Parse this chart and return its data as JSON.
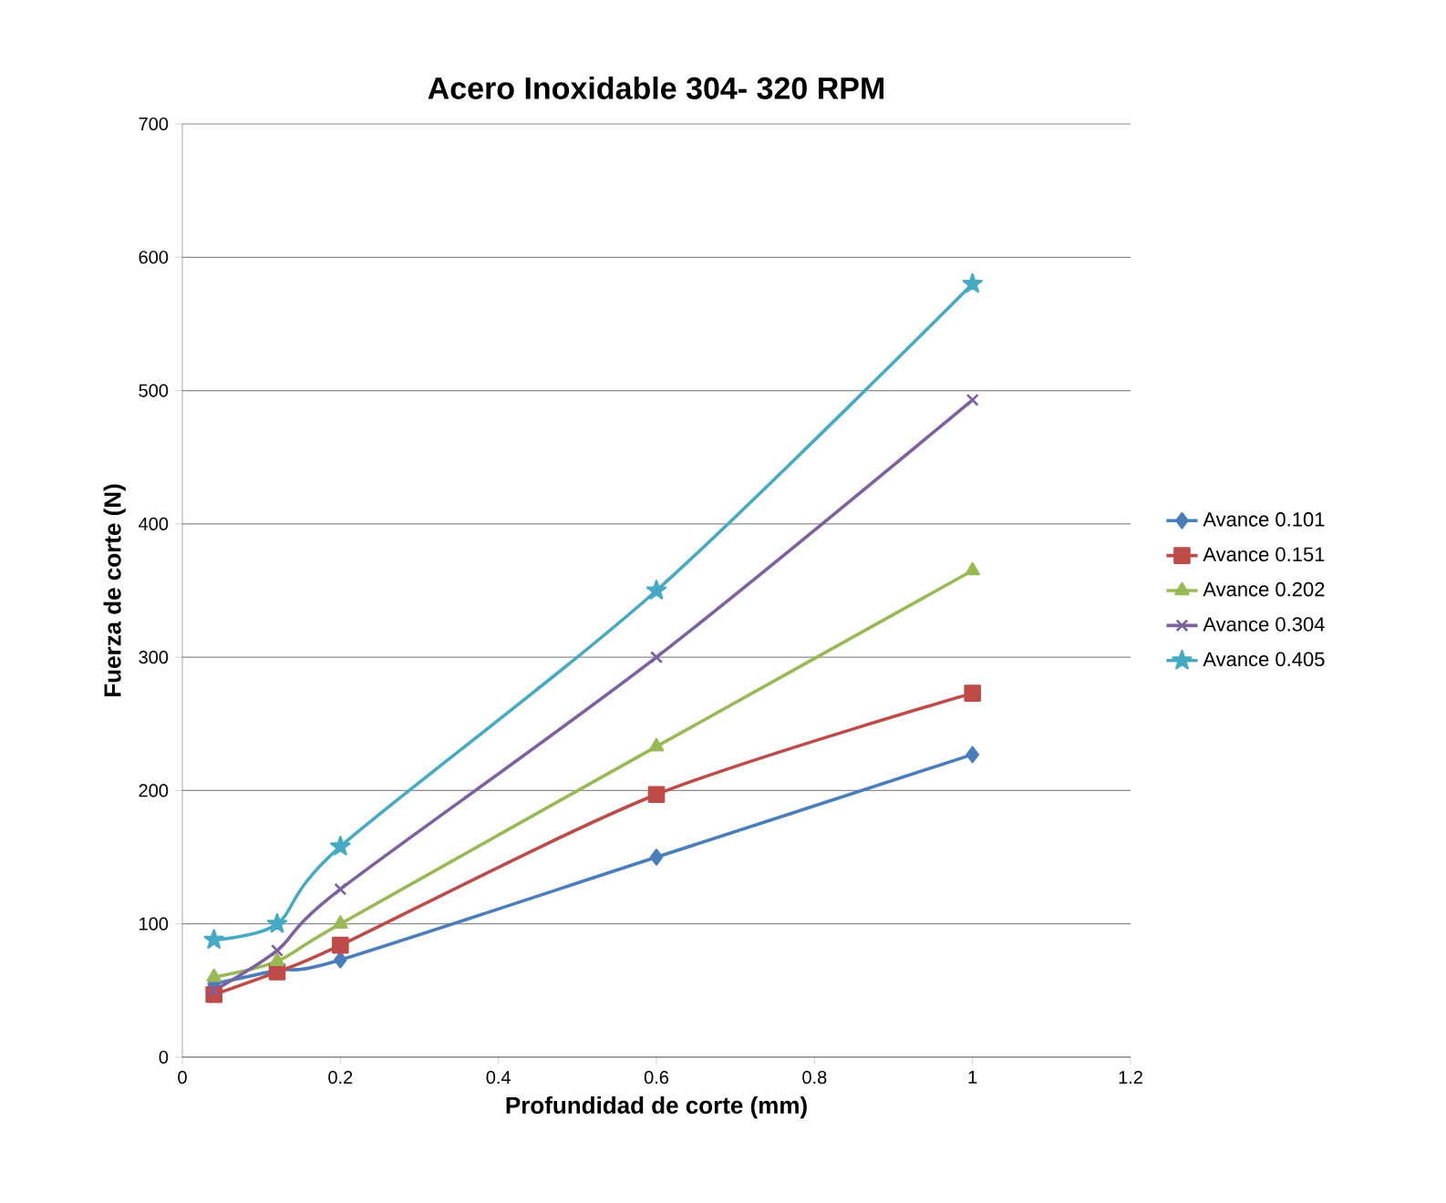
{
  "chart_data": {
    "type": "line",
    "title": "Acero Inoxidable 304- 320 RPM",
    "xlabel": "Profundidad de corte (mm)",
    "ylabel": "Fuerza de corte (N)",
    "x": [
      0.04,
      0.12,
      0.2,
      0.6,
      1.0
    ],
    "series": [
      {
        "name": "Avance 0.101",
        "color": "#4a7ebb",
        "marker": "diamond",
        "values": [
          55,
          65,
          73,
          150,
          227
        ]
      },
      {
        "name": "Avance 0.151",
        "color": "#be4b48",
        "marker": "square",
        "values": [
          47,
          64,
          84,
          197,
          273
        ]
      },
      {
        "name": "Avance 0.202",
        "color": "#98b954",
        "marker": "triangle",
        "values": [
          60,
          72,
          100,
          233,
          365
        ]
      },
      {
        "name": "Avance 0.304",
        "color": "#7d60a0",
        "marker": "cross",
        "values": [
          50,
          80,
          126,
          300,
          493
        ]
      },
      {
        "name": "Avance 0.405",
        "color": "#46aac5",
        "marker": "star",
        "values": [
          88,
          100,
          158,
          350,
          580
        ]
      }
    ],
    "xlim": [
      0,
      1.2
    ],
    "xticks": [
      0,
      0.2,
      0.4,
      0.6,
      0.8,
      1,
      1.2
    ],
    "ylim": [
      0,
      700
    ],
    "yticks": [
      0,
      100,
      200,
      300,
      400,
      500,
      600,
      700
    ],
    "grid": "y",
    "legend": "right",
    "line_style": "solid"
  }
}
